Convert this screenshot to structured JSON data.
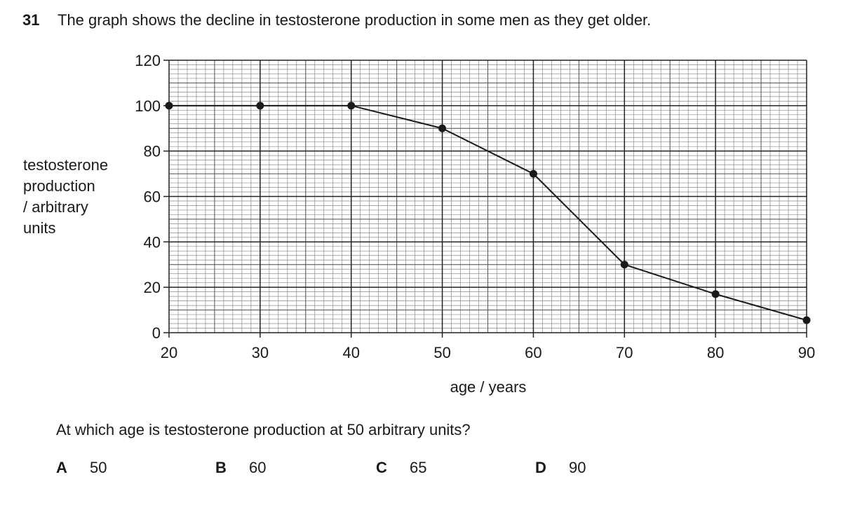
{
  "question": {
    "number": "31",
    "text": "The graph shows the decline in testosterone production in some men as they get older.",
    "prompt": "At which age is testosterone production at 50 arbitrary units?"
  },
  "options": [
    {
      "letter": "A",
      "value": "50"
    },
    {
      "letter": "B",
      "value": "60"
    },
    {
      "letter": "C",
      "value": "65"
    },
    {
      "letter": "D",
      "value": "90"
    }
  ],
  "chart_data": {
    "type": "line",
    "title": "",
    "xlabel": "age / years",
    "ylabel_lines": [
      "testosterone",
      "production",
      "/ arbitrary",
      "units"
    ],
    "xlim": [
      20,
      90
    ],
    "ylim": [
      0,
      120
    ],
    "xticks": [
      20,
      30,
      40,
      50,
      60,
      70,
      80,
      90
    ],
    "yticks": [
      0,
      20,
      40,
      60,
      80,
      100,
      120
    ],
    "grid": true,
    "x": [
      20,
      30,
      40,
      50,
      60,
      70,
      80,
      90
    ],
    "y": [
      100,
      100,
      100,
      90,
      70,
      30,
      17,
      5.5
    ],
    "color": "#1a1a1a"
  }
}
